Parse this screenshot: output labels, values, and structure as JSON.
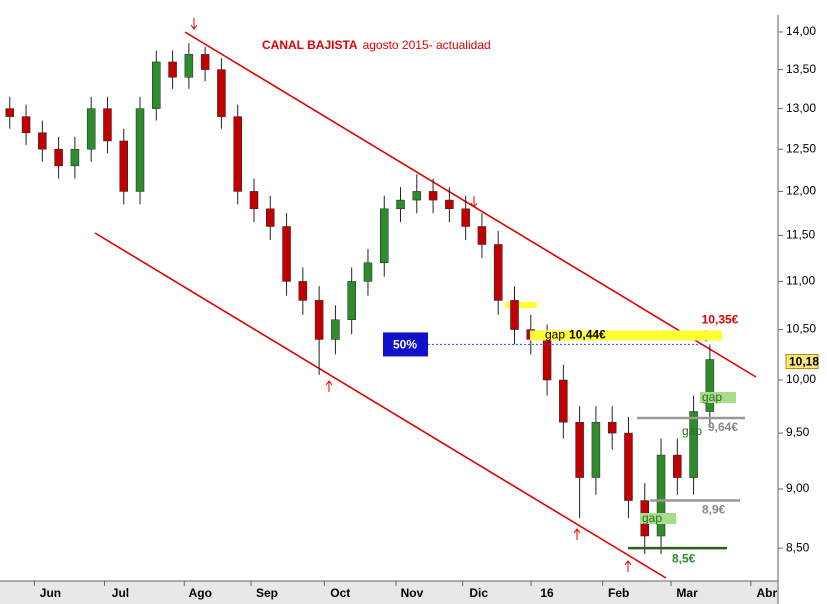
{
  "chart_data": {
    "type": "candlestick",
    "title": "CANAL BAJISTA",
    "subtitle": "agosto 2015- actualidad",
    "log_scale": true,
    "ylim": [
      8.25,
      14.2
    ],
    "yticks": [
      {
        "value": 8.5,
        "label": "8,50"
      },
      {
        "value": 9,
        "label": "9,00"
      },
      {
        "value": 9.5,
        "label": "9,50"
      },
      {
        "value": 10,
        "label": "10,00"
      },
      {
        "value": 10.5,
        "label": "10,50"
      },
      {
        "value": 11,
        "label": "11,00"
      },
      {
        "value": 11.5,
        "label": "11,50"
      },
      {
        "value": 12,
        "label": "12,00"
      },
      {
        "value": 12.5,
        "label": "12,50"
      },
      {
        "value": 13,
        "label": "13,00"
      },
      {
        "value": 13.5,
        "label": "13,50"
      },
      {
        "value": 14,
        "label": "14,00"
      }
    ],
    "xlim": [
      0,
      47.6
    ],
    "xticks": [
      {
        "value": 3.1,
        "label": "Jun"
      },
      {
        "value": 7.4,
        "label": "Jul"
      },
      {
        "value": 12.3,
        "label": "Ago"
      },
      {
        "value": 16.4,
        "label": "Sep"
      },
      {
        "value": 20.9,
        "label": "Oct"
      },
      {
        "value": 25.3,
        "label": "Nov"
      },
      {
        "value": 29.4,
        "label": "Dic"
      },
      {
        "value": 33.6,
        "label": "16"
      },
      {
        "value": 38,
        "label": "Feb"
      },
      {
        "value": 42.2,
        "label": "Mar"
      },
      {
        "value": 47.1,
        "label": "Abr"
      }
    ],
    "series": [
      {
        "up_color": "#2e8b2e",
        "down_color": "#c00000",
        "x": [
          0.6,
          1.6,
          2.6,
          3.6,
          4.6,
          5.6,
          6.6,
          7.6,
          8.6,
          9.6,
          10.6,
          11.6,
          12.6,
          13.6,
          14.6,
          15.6,
          16.6,
          17.6,
          18.6,
          19.6,
          20.6,
          21.6,
          22.6,
          23.6,
          24.6,
          25.6,
          26.6,
          27.6,
          28.6,
          29.6,
          30.6,
          31.6,
          32.6,
          33.6,
          34.6,
          35.6,
          36.6,
          37.6,
          38.6,
          39.6,
          40.6,
          41.6,
          42.6,
          43.6
        ],
        "open": [
          13.0,
          12.9,
          12.7,
          12.5,
          12.3,
          12.5,
          13.0,
          12.6,
          12.0,
          13.0,
          13.6,
          13.4,
          13.7,
          13.5,
          12.9,
          12.0,
          11.8,
          11.6,
          11.0,
          10.8,
          10.4,
          10.6,
          11.0,
          11.2,
          11.8,
          11.9,
          12.0,
          11.9,
          11.8,
          11.6,
          11.4,
          10.8,
          10.5,
          10.4,
          10.0,
          9.6,
          9.1,
          9.6,
          9.5,
          8.9,
          8.6,
          9.3,
          9.1,
          9.7
        ],
        "high": [
          13.15,
          13.05,
          12.85,
          12.65,
          12.65,
          13.15,
          13.15,
          12.75,
          13.15,
          13.75,
          13.75,
          13.85,
          13.8,
          13.65,
          13.05,
          12.15,
          11.95,
          11.75,
          11.15,
          10.95,
          10.75,
          11.15,
          11.35,
          11.95,
          12.05,
          12.2,
          12.15,
          12.05,
          11.95,
          11.75,
          11.55,
          10.95,
          10.65,
          10.55,
          10.15,
          9.75,
          9.75,
          9.75,
          9.65,
          9.05,
          9.45,
          9.45,
          9.85,
          10.35
        ],
        "low": [
          12.75,
          12.55,
          12.35,
          12.15,
          12.15,
          12.35,
          12.45,
          11.85,
          11.85,
          12.85,
          13.25,
          13.25,
          13.35,
          12.75,
          11.85,
          11.65,
          11.45,
          10.85,
          10.65,
          10.05,
          10.25,
          10.45,
          10.85,
          11.05,
          11.65,
          11.75,
          11.75,
          11.65,
          11.45,
          11.25,
          10.65,
          10.35,
          10.25,
          9.85,
          9.45,
          8.75,
          8.95,
          9.35,
          8.75,
          8.45,
          8.45,
          8.95,
          8.95,
          9.55
        ],
        "close": [
          12.9,
          12.7,
          12.5,
          12.3,
          12.5,
          13.0,
          12.6,
          12.0,
          13.0,
          13.6,
          13.4,
          13.7,
          13.5,
          12.9,
          12.0,
          11.8,
          11.6,
          11.0,
          10.8,
          10.4,
          10.6,
          11.0,
          11.2,
          11.8,
          11.9,
          12.0,
          11.9,
          11.8,
          11.6,
          11.4,
          10.8,
          10.5,
          10.4,
          10.0,
          9.6,
          9.1,
          9.6,
          9.5,
          8.9,
          8.6,
          9.3,
          9.1,
          9.7,
          10.2
        ]
      }
    ],
    "levels": [
      {
        "value": 10.44,
        "label": "10,44€"
      },
      {
        "value": 9.64,
        "label": "9,64€"
      },
      {
        "value": 8.9,
        "label": "8,9€"
      },
      {
        "value": 8.5,
        "label": "8,5€"
      }
    ],
    "gap_labels": [
      "gap",
      "gap",
      "gap",
      "gap"
    ],
    "fib_label": "50%",
    "high_label": {
      "value": 10.35,
      "label": "10,35€"
    },
    "last_price": {
      "value": 10.18,
      "label": "10,18"
    }
  }
}
